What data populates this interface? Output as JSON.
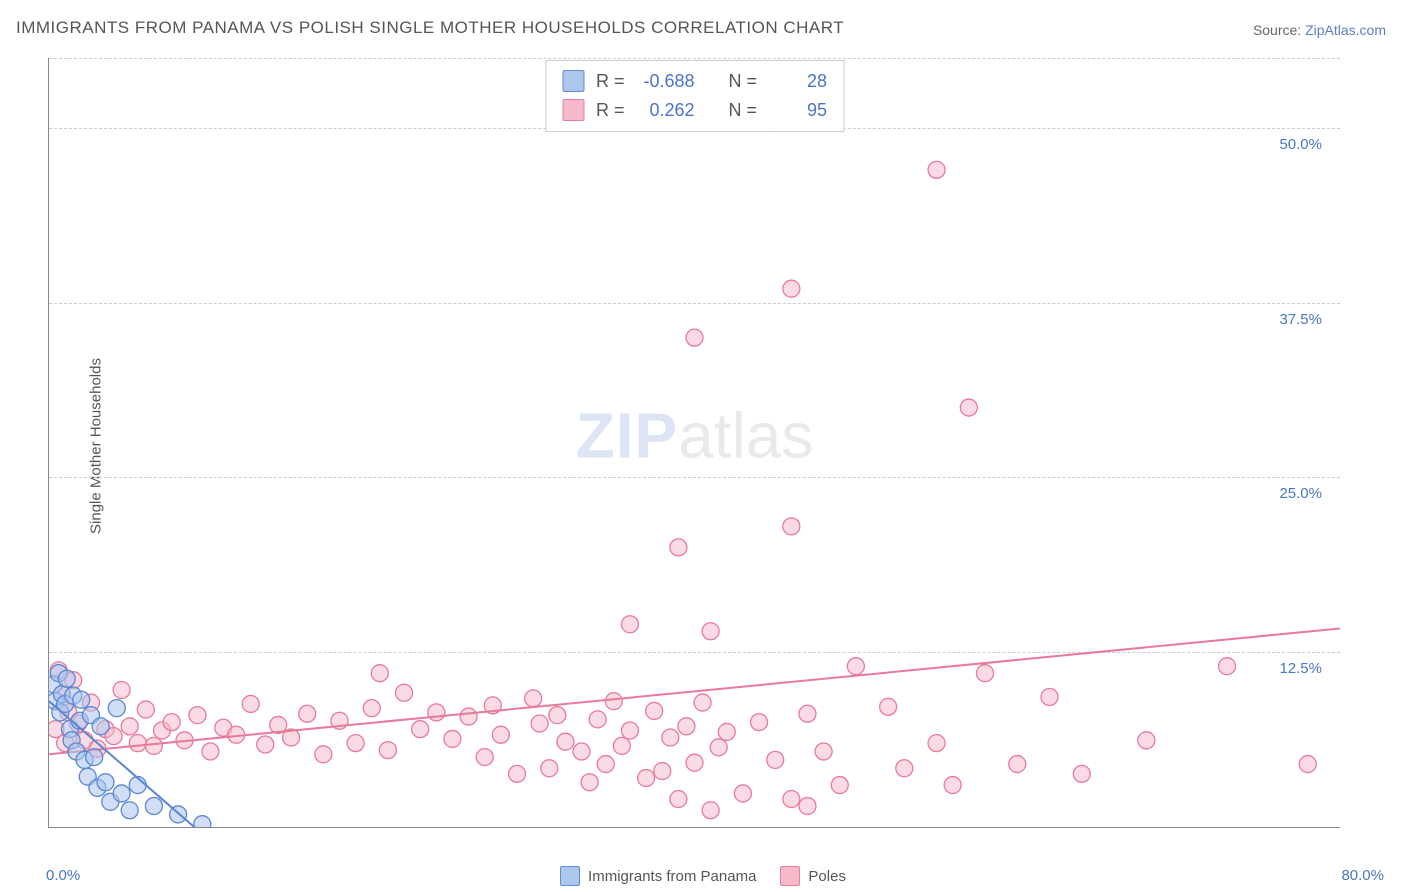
{
  "title": "IMMIGRANTS FROM PANAMA VS POLISH SINGLE MOTHER HOUSEHOLDS CORRELATION CHART",
  "source_label": "Source:",
  "source_name": "ZipAtlas.com",
  "watermark_zip": "ZIP",
  "watermark_atlas": "atlas",
  "chart": {
    "type": "scatter",
    "xlim": [
      0,
      80
    ],
    "ylim": [
      0,
      55
    ],
    "xlabel_min": "0.0%",
    "xlabel_max": "80.0%",
    "ylabel": "Single Mother Households",
    "yticks": [
      12.5,
      25.0,
      37.5,
      50.0
    ],
    "ytick_labels": [
      "12.5%",
      "25.0%",
      "37.5%",
      "50.0%"
    ],
    "grid_y": [
      12.5,
      25.0,
      37.5,
      50.0,
      55.0
    ],
    "background_color": "#ffffff",
    "grid_color": "#cccccc",
    "axis_color": "#888888",
    "tick_label_color": "#4a74c9",
    "marker_radius": 8.5,
    "marker_stroke_width": 1.3,
    "trend_line_width": 2,
    "series": {
      "panama": {
        "label": "Immigrants from Panama",
        "fill": "#a9c4ec",
        "fill_opacity": 0.55,
        "stroke": "#5a86d4",
        "R": -0.688,
        "N": 28,
        "trend": {
          "x1": 0,
          "y1": 9.0,
          "x2": 9.5,
          "y2": -0.5
        },
        "points": [
          [
            0.3,
            10.2
          ],
          [
            0.4,
            9.0
          ],
          [
            0.6,
            11.0
          ],
          [
            0.7,
            8.2
          ],
          [
            0.8,
            9.5
          ],
          [
            1.0,
            8.8
          ],
          [
            1.1,
            10.6
          ],
          [
            1.3,
            7.0
          ],
          [
            1.4,
            6.2
          ],
          [
            1.5,
            9.4
          ],
          [
            1.7,
            5.4
          ],
          [
            1.9,
            7.6
          ],
          [
            2.0,
            9.1
          ],
          [
            2.2,
            4.8
          ],
          [
            2.4,
            3.6
          ],
          [
            2.6,
            8.0
          ],
          [
            2.8,
            5.0
          ],
          [
            3.0,
            2.8
          ],
          [
            3.2,
            7.2
          ],
          [
            3.5,
            3.2
          ],
          [
            3.8,
            1.8
          ],
          [
            4.2,
            8.5
          ],
          [
            4.5,
            2.4
          ],
          [
            5.0,
            1.2
          ],
          [
            5.5,
            3.0
          ],
          [
            6.5,
            1.5
          ],
          [
            8.0,
            0.9
          ],
          [
            9.5,
            0.2
          ]
        ]
      },
      "poles": {
        "label": "Poles",
        "fill": "#f5b6c7",
        "fill_opacity": 0.5,
        "stroke": "#e87a9a",
        "R": 0.262,
        "N": 95,
        "trend": {
          "x1": 0,
          "y1": 5.2,
          "x2": 80,
          "y2": 14.2
        },
        "points": [
          [
            0.4,
            7.0
          ],
          [
            0.6,
            11.2
          ],
          [
            0.8,
            9.5
          ],
          [
            1.0,
            6.0
          ],
          [
            1.2,
            8.2
          ],
          [
            1.5,
            10.5
          ],
          [
            1.8,
            7.4
          ],
          [
            2.2,
            6.2
          ],
          [
            2.6,
            8.9
          ],
          [
            3.0,
            5.6
          ],
          [
            3.5,
            7.0
          ],
          [
            4.0,
            6.5
          ],
          [
            4.5,
            9.8
          ],
          [
            5.0,
            7.2
          ],
          [
            5.5,
            6.0
          ],
          [
            6.0,
            8.4
          ],
          [
            6.5,
            5.8
          ],
          [
            7.0,
            6.9
          ],
          [
            7.6,
            7.5
          ],
          [
            8.4,
            6.2
          ],
          [
            9.2,
            8.0
          ],
          [
            10.0,
            5.4
          ],
          [
            10.8,
            7.1
          ],
          [
            11.6,
            6.6
          ],
          [
            12.5,
            8.8
          ],
          [
            13.4,
            5.9
          ],
          [
            14.2,
            7.3
          ],
          [
            15.0,
            6.4
          ],
          [
            16.0,
            8.1
          ],
          [
            17.0,
            5.2
          ],
          [
            18.0,
            7.6
          ],
          [
            19.0,
            6.0
          ],
          [
            20.0,
            8.5
          ],
          [
            20.5,
            11.0
          ],
          [
            21.0,
            5.5
          ],
          [
            22.0,
            9.6
          ],
          [
            23.0,
            7.0
          ],
          [
            24.0,
            8.2
          ],
          [
            25.0,
            6.3
          ],
          [
            26.0,
            7.9
          ],
          [
            27.0,
            5.0
          ],
          [
            27.5,
            8.7
          ],
          [
            28.0,
            6.6
          ],
          [
            29.0,
            3.8
          ],
          [
            30.0,
            9.2
          ],
          [
            30.4,
            7.4
          ],
          [
            31.0,
            4.2
          ],
          [
            31.5,
            8.0
          ],
          [
            32.0,
            6.1
          ],
          [
            33.0,
            5.4
          ],
          [
            33.5,
            3.2
          ],
          [
            34.0,
            7.7
          ],
          [
            34.5,
            4.5
          ],
          [
            35.0,
            9.0
          ],
          [
            35.5,
            5.8
          ],
          [
            36.0,
            14.5
          ],
          [
            36.0,
            6.9
          ],
          [
            37.0,
            3.5
          ],
          [
            37.5,
            8.3
          ],
          [
            38.0,
            4.0
          ],
          [
            38.5,
            6.4
          ],
          [
            39.0,
            20.0
          ],
          [
            39.0,
            2.0
          ],
          [
            39.5,
            7.2
          ],
          [
            40.0,
            35.0
          ],
          [
            40.0,
            4.6
          ],
          [
            40.5,
            8.9
          ],
          [
            41.0,
            14.0
          ],
          [
            41.0,
            1.2
          ],
          [
            41.5,
            5.7
          ],
          [
            42.0,
            6.8
          ],
          [
            43.0,
            2.4
          ],
          [
            46.0,
            38.5
          ],
          [
            44.0,
            7.5
          ],
          [
            45.0,
            4.8
          ],
          [
            46.0,
            2.0
          ],
          [
            46.0,
            21.5
          ],
          [
            47.0,
            8.1
          ],
          [
            47.0,
            1.5
          ],
          [
            48.0,
            5.4
          ],
          [
            49.0,
            3.0
          ],
          [
            50.0,
            11.5
          ],
          [
            52.0,
            8.6
          ],
          [
            53.0,
            4.2
          ],
          [
            55.0,
            47.0
          ],
          [
            55.0,
            6.0
          ],
          [
            56.0,
            3.0
          ],
          [
            57.0,
            30.0
          ],
          [
            58.0,
            11.0
          ],
          [
            60.0,
            4.5
          ],
          [
            62.0,
            9.3
          ],
          [
            64.0,
            3.8
          ],
          [
            68.0,
            6.2
          ],
          [
            73.0,
            11.5
          ],
          [
            78.0,
            4.5
          ]
        ]
      }
    }
  },
  "statbox": {
    "R_label": "R =",
    "N_label": "N ="
  },
  "bottom_legend": {
    "panama": "Immigrants from Panama",
    "poles": "Poles"
  }
}
